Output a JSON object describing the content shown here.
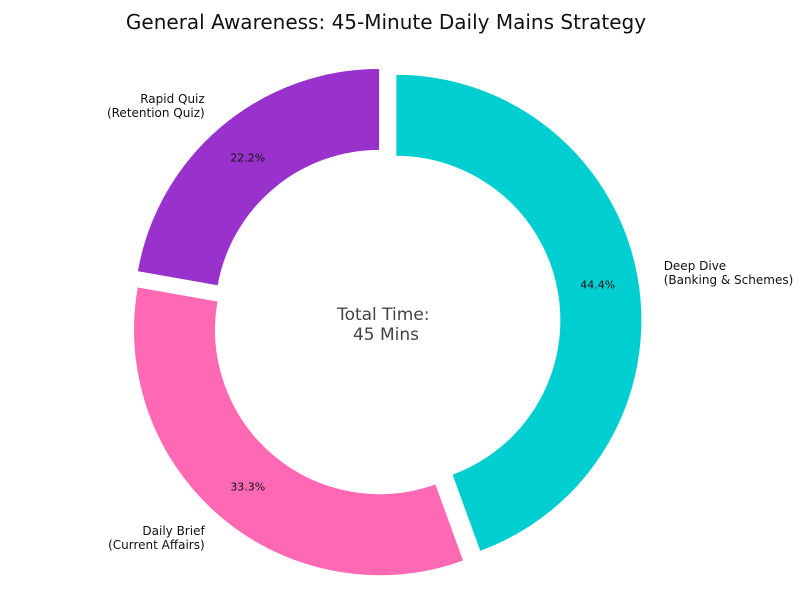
{
  "chart_data": {
    "type": "pie",
    "title": "General Awareness: 45-Minute Daily Mains Strategy",
    "center_label": [
      "Total Time:",
      "45 Mins"
    ],
    "donut": true,
    "start_angle_deg": 90,
    "direction": "clockwise",
    "exploded": true,
    "slices": [
      {
        "label": [
          "Deep Dive",
          "(Banking & Schemes)"
        ],
        "value": 20,
        "percent_label": "44.4%",
        "color": "#00CED1"
      },
      {
        "label": [
          "Daily Brief",
          "(Current Affairs)"
        ],
        "value": 15,
        "percent_label": "33.3%",
        "color": "#FF69B4"
      },
      {
        "label": [
          "Rapid Quiz",
          "(Retention Quiz)"
        ],
        "value": 10,
        "percent_label": "22.2%",
        "color": "#9932CC"
      }
    ]
  }
}
